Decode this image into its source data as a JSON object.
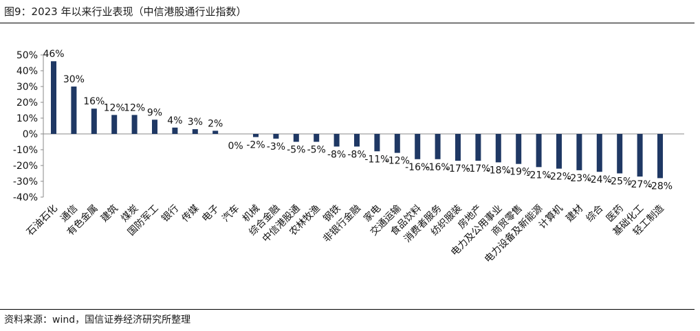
{
  "title": "图9：2023 年以来行业表现（中信港股通行业指数）",
  "source": "资料来源：wind，国信证券经济研究所整理",
  "colors": {
    "bar": "#1f3864",
    "axis": "#888888"
  },
  "chart_data": {
    "type": "bar",
    "title": "图9：2023 年以来行业表现（中信港股通行业指数）",
    "xlabel": "",
    "ylabel": "",
    "ylim": [
      -40,
      50
    ],
    "yticks": [
      "50%",
      "40%",
      "30%",
      "20%",
      "10%",
      "0%",
      "-10%",
      "-20%",
      "-30%",
      "-40%"
    ],
    "grid": false,
    "legend": "none",
    "categories": [
      "石油石化",
      "通信",
      "有色金属",
      "建筑",
      "煤炭",
      "国防军工",
      "银行",
      "传媒",
      "电子",
      "汽车",
      "机械",
      "综合金融",
      "中信港股通",
      "农林牧渔",
      "钢铁",
      "非银行金融",
      "家电",
      "交通运输",
      "食品饮料",
      "消费者服务",
      "纺织服装",
      "房地产",
      "电力及公用事业",
      "商贸零售",
      "电力设备及新能源",
      "计算机",
      "建材",
      "综合",
      "医药",
      "基础化工",
      "轻工制造"
    ],
    "values": [
      46,
      30,
      16,
      12,
      12,
      9,
      4,
      3,
      2,
      0,
      -2,
      -3,
      -5,
      -5,
      -8,
      -8,
      -11,
      -12,
      -16,
      -16,
      -17,
      -17,
      -18,
      -19,
      -21,
      -22,
      -23,
      -24,
      -25,
      -27,
      -28
    ],
    "labels": [
      "46%",
      "30%",
      "16%",
      "12%",
      "12%",
      "9%",
      "4%",
      "3%",
      "2%",
      "0%",
      "-2%",
      "-3%",
      "-5%",
      "-5%",
      "-8%",
      "-8%",
      "-11%",
      "-12%",
      "-16%",
      "-16%",
      "-17%",
      "-17%",
      "-18%",
      "-19%",
      "-21%",
      "-22%",
      "-23%",
      "-24%",
      "-25%",
      "-27%",
      "-28%"
    ]
  }
}
